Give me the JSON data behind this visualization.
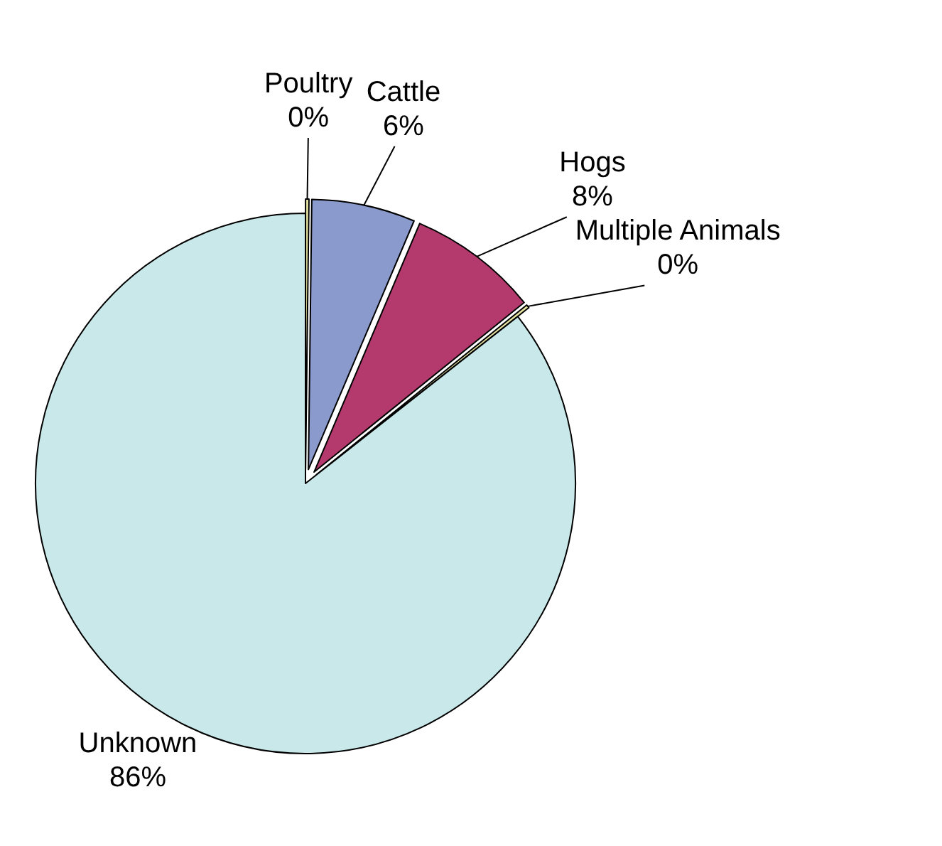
{
  "chart_data": {
    "type": "pie",
    "categories": [
      "Poultry",
      "Cattle",
      "Hogs",
      "Multiple Animals",
      "Unknown"
    ],
    "values": [
      0.2,
      6.2,
      7.8,
      0.2,
      85.6
    ],
    "value_labels": [
      "0%",
      "6%",
      "8%",
      "0%",
      "86%"
    ],
    "colors": [
      "#f2eea8",
      "#8a9acd",
      "#b43a6e",
      "#e6e2a0",
      "#c8e8ea"
    ]
  }
}
